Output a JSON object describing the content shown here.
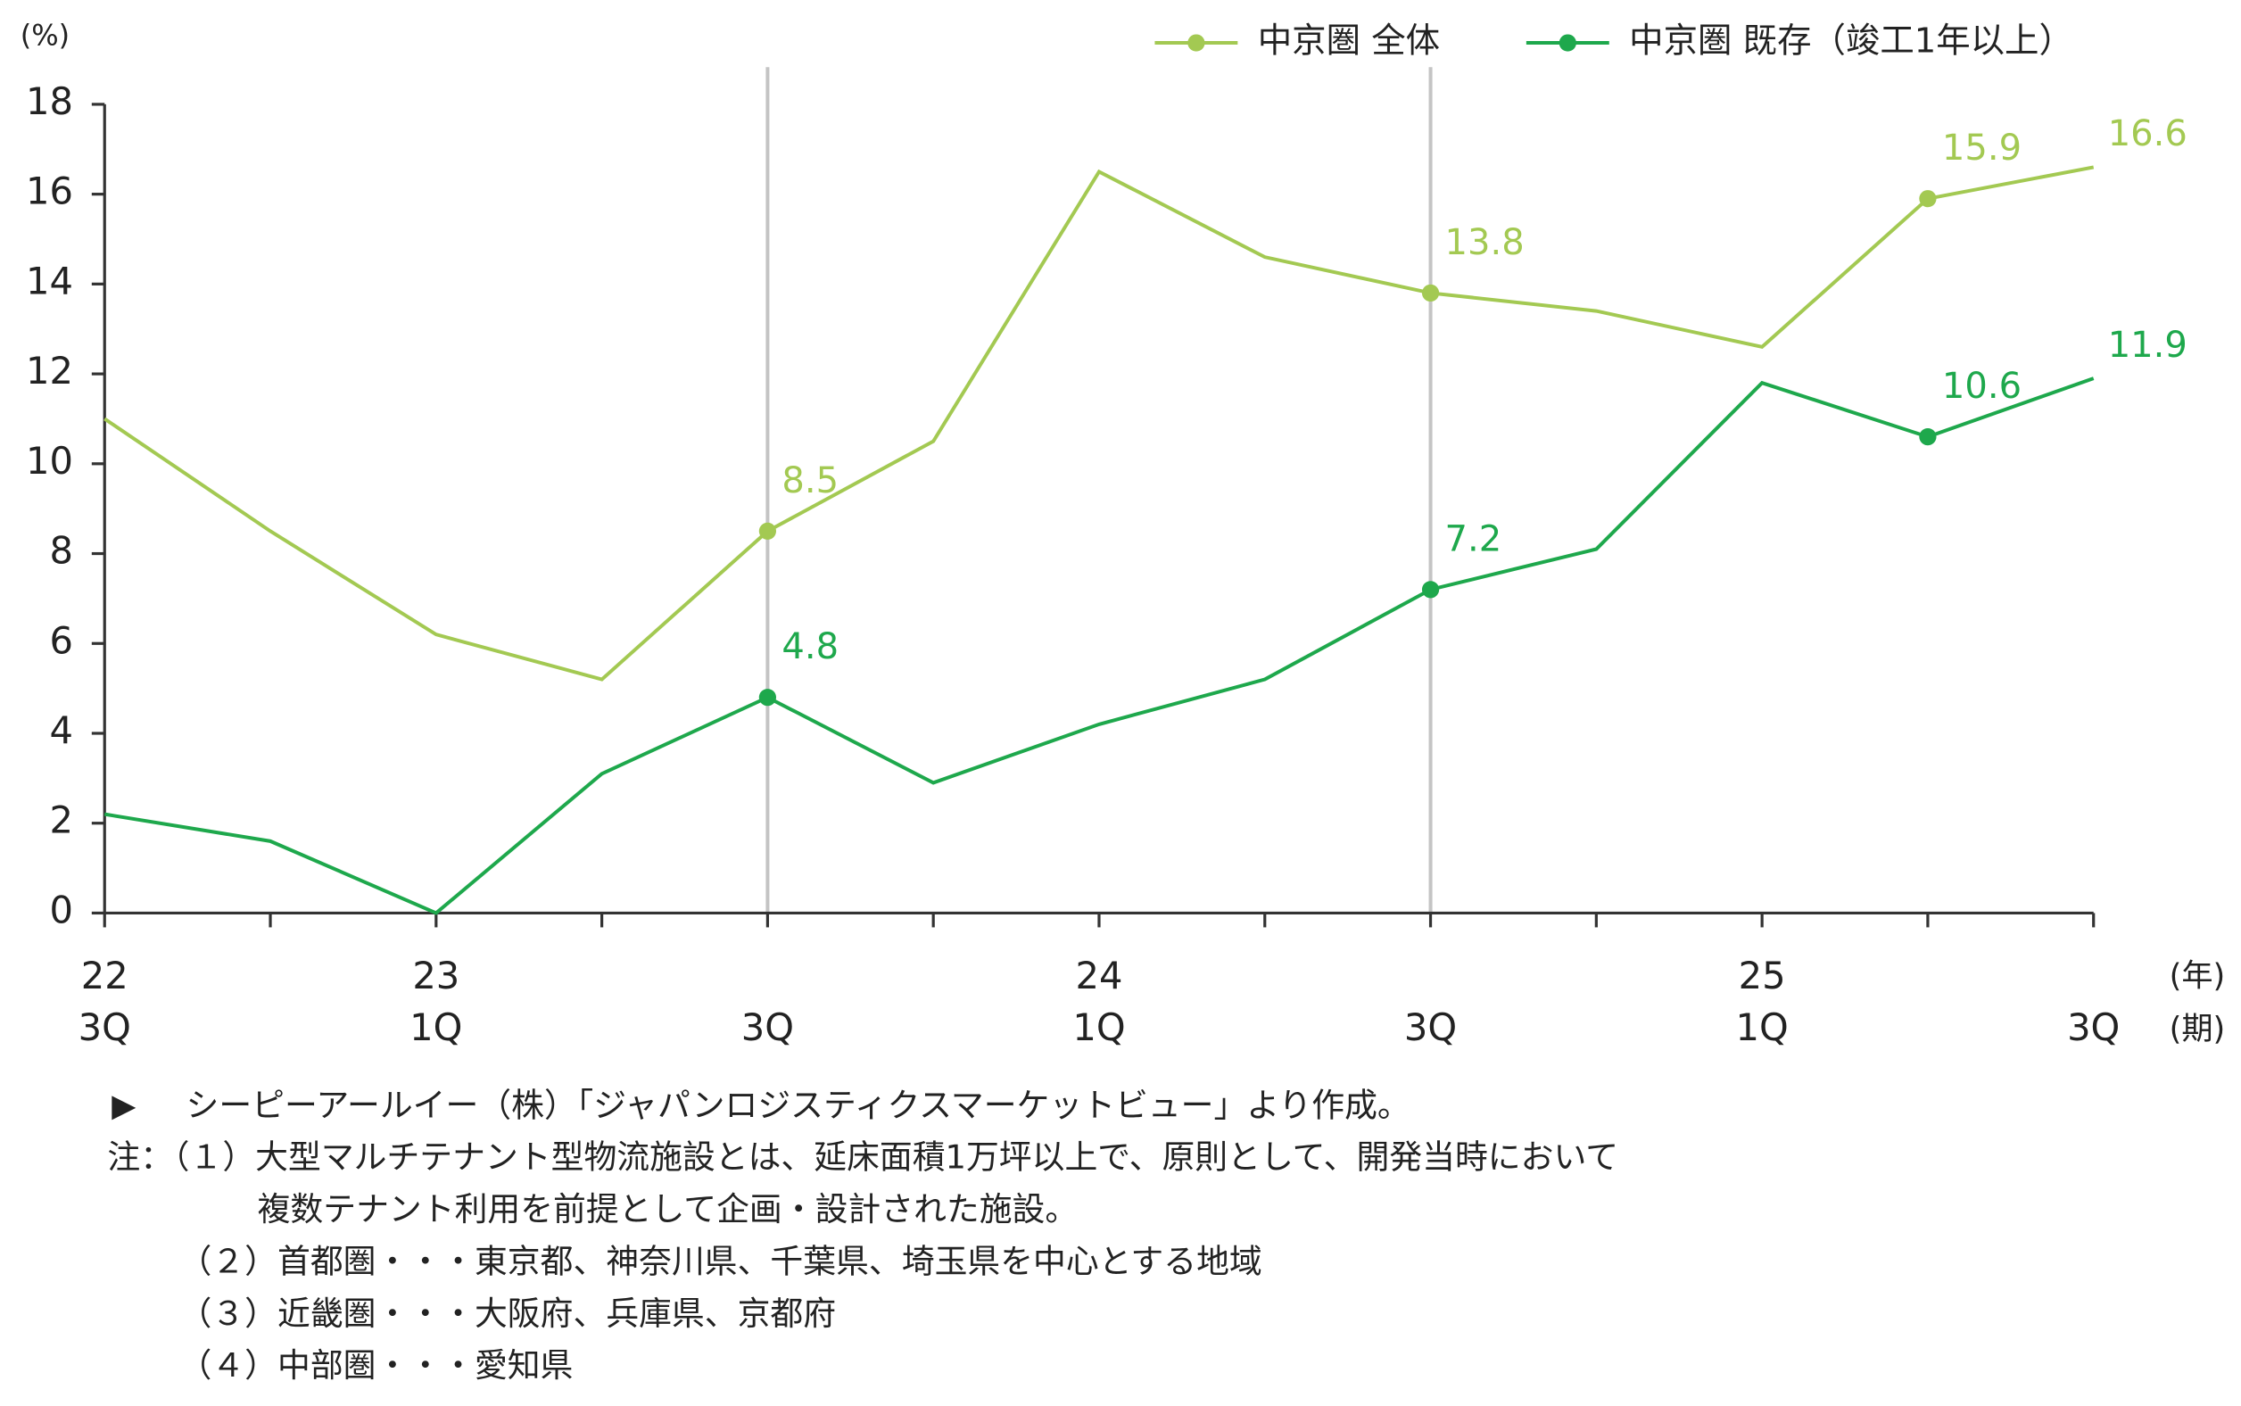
{
  "chart_data": {
    "type": "line",
    "y_unit_label": "(%)",
    "x_unit_labels": [
      "(年)",
      "(期)"
    ],
    "categories": [
      {
        "year": "22",
        "quarter": "3Q"
      },
      null,
      {
        "year": "23",
        "quarter": "1Q"
      },
      null,
      {
        "quarter": "3Q"
      },
      null,
      {
        "year": "24",
        "quarter": "1Q"
      },
      null,
      {
        "quarter": "3Q"
      },
      null,
      {
        "year": "25",
        "quarter": "1Q"
      },
      null,
      {
        "quarter": "3Q"
      }
    ],
    "series": [
      {
        "name": "中京圏 全体",
        "color": "#a3c952",
        "values": [
          11.0,
          8.5,
          6.2,
          5.2,
          8.5,
          10.5,
          16.5,
          14.6,
          13.8,
          13.4,
          12.6,
          15.9,
          16.6
        ]
      },
      {
        "name": "中京圏 既存（竣工1年以上）",
        "color": "#1ea84c",
        "values": [
          2.2,
          1.6,
          0.0,
          3.1,
          4.8,
          2.9,
          4.2,
          5.2,
          7.2,
          8.1,
          11.8,
          10.6,
          11.9
        ]
      }
    ],
    "labeled_points": [
      4,
      8,
      11,
      12
    ],
    "marker_points": [
      4,
      8,
      11
    ],
    "highlight_x": [
      4,
      8
    ],
    "ylim": [
      0,
      18
    ],
    "yticks": [
      0,
      2,
      4,
      6,
      8,
      10,
      12,
      14,
      16,
      18
    ],
    "legend": "top-right",
    "source": "シーピーアールイー（株）「ジャパンロジスティクスマーケットビュー」より作成。",
    "notes": [
      "注：（１）大型マルチテナント型物流施設とは、延床面積1万坪以上で、原則として、開発当時において",
      "複数テナント利用を前提として企画・設計された施設。",
      "（２）首都圏・・・東京都、神奈川県、千葉県、埼玉県を中心とする地域",
      "（３）近畿圏・・・大阪府、兵庫県、京都府",
      "（４）中部圏・・・愛知県"
    ]
  }
}
